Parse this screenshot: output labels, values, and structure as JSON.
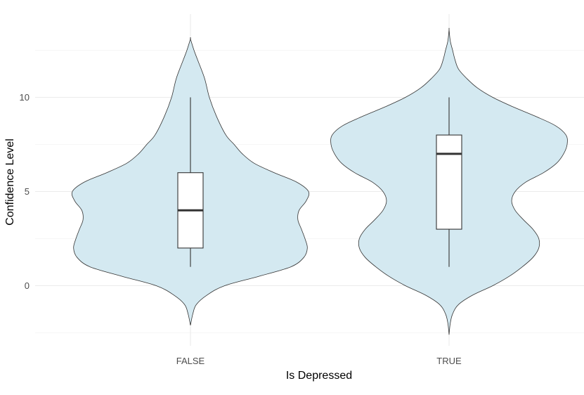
{
  "chart_data": {
    "type": "violin",
    "title": "",
    "xlabel": "Is Depressed",
    "ylabel": "Confidence Level",
    "categories": [
      "FALSE",
      "TRUE"
    ],
    "ylim": [
      -2.5,
      14.0
    ],
    "y_ticks": [
      0,
      5,
      10
    ],
    "y_tick_labels": [
      "0",
      "5",
      "10"
    ],
    "grid": true,
    "legend": "none",
    "colors": {
      "violin_fill": "#d4e9f1",
      "outline": "#333333",
      "box_fill": "#ffffff",
      "grid": "#ebebeb"
    },
    "groups": [
      {
        "label": "FALSE",
        "box": {
          "min": 1,
          "q1": 2,
          "median": 4,
          "q3": 6,
          "max": 10
        },
        "violin_range": [
          -2.1,
          13.1
        ],
        "density": [
          [
            -2.1,
            0.0
          ],
          [
            -1.5,
            0.02
          ],
          [
            -1.0,
            0.05
          ],
          [
            -0.5,
            0.14
          ],
          [
            0.0,
            0.29
          ],
          [
            0.5,
            0.58
          ],
          [
            1.0,
            0.85
          ],
          [
            1.5,
            0.96
          ],
          [
            2.0,
            0.99
          ],
          [
            2.5,
            0.97
          ],
          [
            3.0,
            0.94
          ],
          [
            3.5,
            0.91
          ],
          [
            4.0,
            0.92
          ],
          [
            4.5,
            0.98
          ],
          [
            5.0,
            1.0
          ],
          [
            5.5,
            0.9
          ],
          [
            6.0,
            0.71
          ],
          [
            6.5,
            0.54
          ],
          [
            7.0,
            0.44
          ],
          [
            7.5,
            0.37
          ],
          [
            8.0,
            0.3
          ],
          [
            9.0,
            0.22
          ],
          [
            10.0,
            0.16
          ],
          [
            11.0,
            0.12
          ],
          [
            12.0,
            0.06
          ],
          [
            12.5,
            0.03
          ],
          [
            13.1,
            0.0
          ]
        ]
      },
      {
        "label": "TRUE",
        "box": {
          "min": 1,
          "q1": 3,
          "median": 7,
          "q3": 8,
          "max": 10
        },
        "violin_range": [
          -2.6,
          13.6
        ],
        "density": [
          [
            -2.6,
            0.0
          ],
          [
            -2.0,
            0.01
          ],
          [
            -1.5,
            0.03
          ],
          [
            -1.0,
            0.08
          ],
          [
            -0.5,
            0.2
          ],
          [
            0.0,
            0.37
          ],
          [
            0.5,
            0.51
          ],
          [
            1.0,
            0.62
          ],
          [
            1.5,
            0.71
          ],
          [
            2.0,
            0.76
          ],
          [
            2.5,
            0.76
          ],
          [
            3.0,
            0.71
          ],
          [
            3.5,
            0.63
          ],
          [
            4.0,
            0.56
          ],
          [
            4.5,
            0.53
          ],
          [
            5.0,
            0.56
          ],
          [
            5.5,
            0.65
          ],
          [
            6.0,
            0.8
          ],
          [
            6.5,
            0.91
          ],
          [
            7.0,
            0.97
          ],
          [
            7.5,
            1.0
          ],
          [
            8.0,
            0.99
          ],
          [
            8.5,
            0.9
          ],
          [
            9.0,
            0.73
          ],
          [
            9.5,
            0.54
          ],
          [
            10.0,
            0.37
          ],
          [
            10.5,
            0.24
          ],
          [
            11.0,
            0.15
          ],
          [
            11.5,
            0.08
          ],
          [
            12.0,
            0.05
          ],
          [
            12.5,
            0.03
          ],
          [
            13.0,
            0.01
          ],
          [
            13.6,
            0.0
          ]
        ]
      }
    ]
  }
}
